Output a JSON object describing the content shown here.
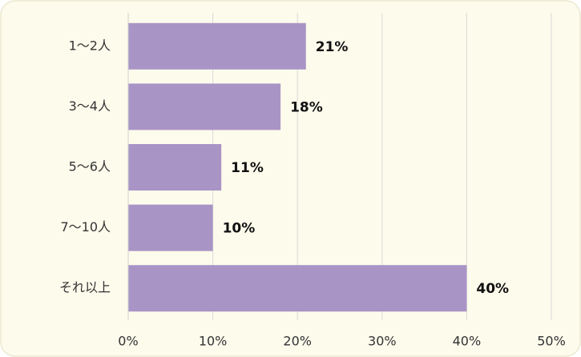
{
  "chart_data": {
    "type": "bar",
    "orientation": "horizontal",
    "categories": [
      "1〜2人",
      "3〜4人",
      "5〜6人",
      "7〜10人",
      "それ以上"
    ],
    "values": [
      21,
      18,
      11,
      10,
      40
    ],
    "value_labels": [
      "21%",
      "18%",
      "11%",
      "10%",
      "40%"
    ],
    "color": "#a994c6",
    "xlim": [
      0,
      50
    ],
    "xticks": [
      {
        "value": 0,
        "label": "0%"
      },
      {
        "value": 10,
        "label": "10%"
      },
      {
        "value": 20,
        "label": "20%"
      },
      {
        "value": 30,
        "label": "30%"
      },
      {
        "value": 40,
        "label": "40%"
      },
      {
        "value": 50,
        "label": "50%"
      }
    ],
    "grid": true
  }
}
